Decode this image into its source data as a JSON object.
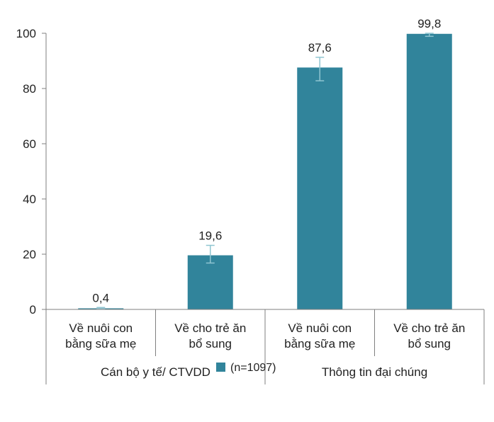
{
  "chart_data": {
    "type": "bar",
    "categories": [
      "Về nuôi con bằng sữa mẹ",
      "Về cho trẻ ăn bổ sung",
      "Về nuôi con bằng sữa mẹ",
      "Về cho trẻ ăn bổ sung"
    ],
    "category_lines": [
      [
        "Về nuôi con",
        "bằng sữa mẹ"
      ],
      [
        "Về cho trẻ ăn",
        "bổ sung"
      ],
      [
        "Về nuôi con",
        "bằng sữa mẹ"
      ],
      [
        "Về cho trẻ ăn",
        "bổ sung"
      ]
    ],
    "groups": [
      {
        "label": "Cán bộ y tế/ CTVDD",
        "categories": [
          0,
          1
        ]
      },
      {
        "label": "Thông tin đại chúng",
        "categories": [
          2,
          3
        ]
      }
    ],
    "series": [
      {
        "name": "(n=1097)",
        "values": [
          0.4,
          19.6,
          87.6,
          99.8
        ],
        "data_labels": [
          "0,4",
          "19,6",
          "87,6",
          "99,8"
        ],
        "error_low": [
          0.1,
          16.8,
          82.8,
          98.9
        ],
        "error_high": [
          0.7,
          23.2,
          91.3,
          100.0
        ],
        "color": "#31849b"
      }
    ],
    "ylim": [
      0,
      100
    ],
    "yticks": [
      0,
      20,
      40,
      60,
      80,
      100
    ],
    "ytick_labels": [
      "0",
      "20",
      "40",
      "60",
      "80",
      "100"
    ],
    "error_bar_color": "#8fc5d1",
    "grid": false,
    "legend_position": "bottom"
  }
}
